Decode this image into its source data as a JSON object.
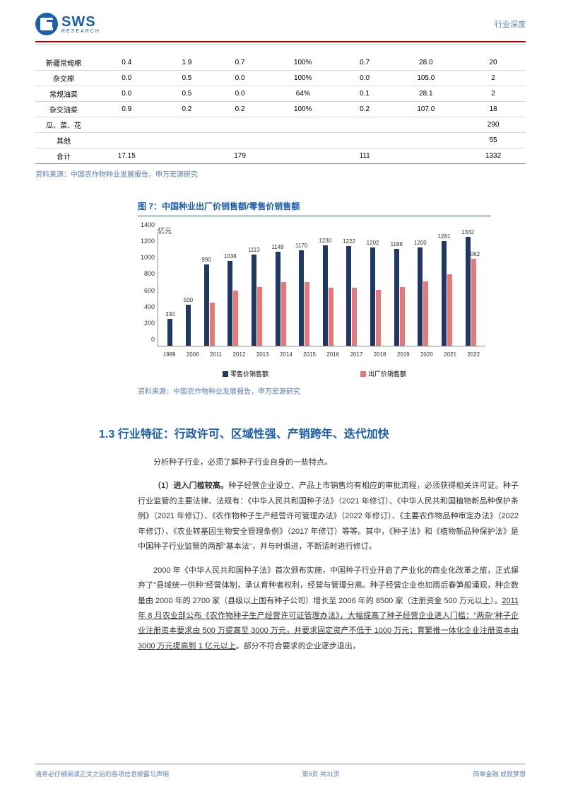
{
  "header": {
    "logo_main": "SWS",
    "logo_sub": "RESEARCH",
    "right_text": "行业深度"
  },
  "table": {
    "rows": [
      [
        "新疆常规棉",
        "0.4",
        "1.9",
        "0.7",
        "100%",
        "0.7",
        "28.0",
        "20"
      ],
      [
        "杂交棉",
        "0.0",
        "0.5",
        "0.0",
        "100%",
        "0.0",
        "105.0",
        "2"
      ],
      [
        "常规油菜",
        "0.0",
        "0.5",
        "0.0",
        "64%",
        "0.1",
        "28.1",
        "2"
      ],
      [
        "杂交油菜",
        "0.9",
        "0.2",
        "0.2",
        "100%",
        "0.2",
        "107.0",
        "18"
      ],
      [
        "瓜、菜、花",
        "",
        "",
        "",
        "",
        "",
        "",
        "290"
      ],
      [
        "其他",
        "",
        "",
        "",
        "",
        "",
        "",
        "55"
      ],
      [
        "合计",
        "17.15",
        "",
        "179",
        "",
        "111",
        "",
        "1332"
      ]
    ],
    "source": "资料来源：中国农作物种业发展报告，申万宏源研究"
  },
  "chart": {
    "title": "图 7：中国种业出厂价销售额/零售价销售额",
    "ylabel": "亿元",
    "ymax": 1400,
    "ytick_step": 200,
    "categories": [
      "1999",
      "2006",
      "2011",
      "2012",
      "2013",
      "2014",
      "2015",
      "2016",
      "2017",
      "2018",
      "2019",
      "2020",
      "2021",
      "2022"
    ],
    "series1_name": "零售价销售额",
    "series1_color": "#203864",
    "series1_values": [
      330,
      500,
      990,
      1038,
      1113,
      1149,
      1170,
      1230,
      1222,
      1202,
      1188,
      1200,
      1281,
      1332
    ],
    "series2_name": "出厂价销售额",
    "series2_color": "#e87878",
    "series2_values": [
      null,
      null,
      530,
      670,
      720,
      780,
      780,
      710,
      710,
      680,
      720,
      790,
      870,
      1062
    ],
    "series2_labels": [
      null,
      null,
      null,
      null,
      null,
      null,
      null,
      null,
      null,
      null,
      null,
      null,
      null,
      "1062"
    ],
    "source": "资料来源：中国农作物种业发展报告，申万宏源研究"
  },
  "section": {
    "heading": "1.3 行业特征：行政许可、区域性强、产销跨年、迭代加快",
    "p1": "分析种子行业，必须了解种子行业自身的一些特点。",
    "p2_bold": "（1）进入门槛较高。",
    "p2": "种子经营企业设立、产品上市销售均有相应的审批流程，必须获得相关许可证。种子行业监管的主要法律、法规有：《中华人民共和国种子法》（2021 年修订）、《中华人民共和国植物新品种保护条例》（2021 年修订）、《农作物种子生产经营许可管理办法》（2022 年修订）、《主要农作物品种审定办法》（2022 年修订）、《农业转基因生物安全管理条例》（2017 年修订）等等。其中，《种子法》和《植物新品种保护法》是中国种子行业监管的两部\"基本法\"，并与时俱进，不断适时进行修订。",
    "p3a": "2000 年《中华人民共和国种子法》首次颁布实施，中国种子行业开启了产业化的商业化改革之旅，正式摒弃了\"县域统一供种\"经营体制，承认育种者权利，经营与管理分离。种子经营企业也如雨后春笋般涌现，种企数量由 2000 年的 2700 家（县级以上国有种子公司）增长至 2006 年的 8500 家（注册资金 500 万元以上）。",
    "p3_underline": "2011 年 8 月农业部公布《农作物种子生产经营许可证管理办法》，大幅提高了种子经营企业进入门槛：\"两杂\"种子企业注册资本要求由 500 万提高至 3000 万元，并要求固定资产不低于 1000 万元；育繁推一体化企业注册资本由 3000 万元提高到 1 亿元以上",
    "p3b": "。部分不符合要求的企业逐步退出，"
  },
  "footer": {
    "left": "请务必仔细阅读正文之后的各项信息披露与声明",
    "center": "第9页 共31页",
    "right": "简单金融 成就梦想"
  }
}
